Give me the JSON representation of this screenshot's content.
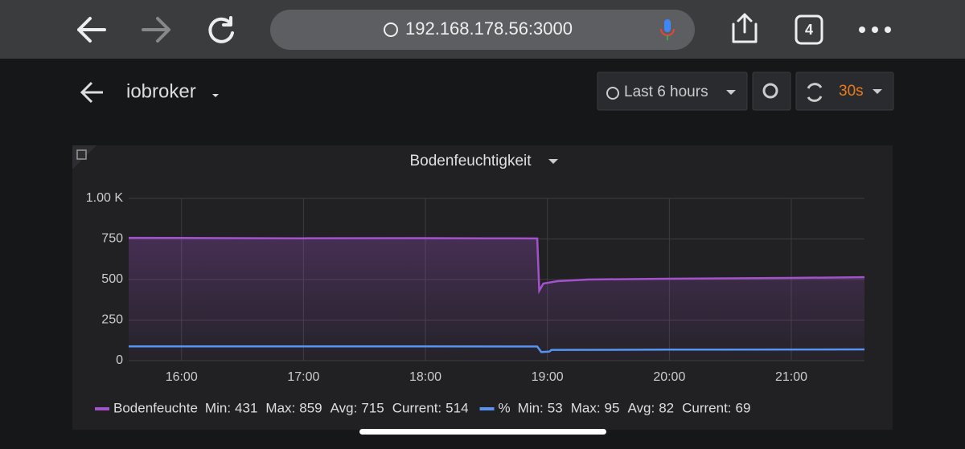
{
  "browser": {
    "url": "192.168.178.56:3000",
    "tab_count": "4"
  },
  "dashboard": {
    "title": "iobroker",
    "time_range": "Last 6 hours",
    "refresh": "30s"
  },
  "chart_data": {
    "type": "line",
    "title": "Bodenfeuchtigkeit",
    "xlim": [
      934,
      1296
    ],
    "xticks": [
      {
        "value": 960,
        "label": "16:00"
      },
      {
        "value": 1020,
        "label": "17:00"
      },
      {
        "value": 1080,
        "label": "18:00"
      },
      {
        "value": 1140,
        "label": "19:00"
      },
      {
        "value": 1200,
        "label": "20:00"
      },
      {
        "value": 1260,
        "label": "21:00"
      }
    ],
    "ylim": [
      0,
      1000
    ],
    "yticks": [
      0,
      250,
      500,
      750,
      {
        "value": 1000,
        "label": "1.00 K"
      }
    ],
    "grid": true,
    "series": [
      {
        "name": "Bodenfeuchte",
        "color": "#a352cc",
        "x": [
          934,
          960,
          1020,
          1080,
          1110,
          1135,
          1136,
          1138,
          1145,
          1160,
          1200,
          1260,
          1296
        ],
        "values": [
          757,
          756,
          754,
          755,
          754,
          753,
          431,
          475,
          490,
          500,
          505,
          510,
          514
        ],
        "stats": [
          {
            "label": "Min:",
            "value": 431
          },
          {
            "label": "Max:",
            "value": 859
          },
          {
            "label": "Avg:",
            "value": 715
          },
          {
            "label": "Current:",
            "value": 514
          }
        ]
      },
      {
        "name": "%",
        "color": "#5794f2",
        "x": [
          934,
          1020,
          1080,
          1135,
          1137,
          1141,
          1142,
          1200,
          1296
        ],
        "values": [
          88,
          88,
          88,
          87,
          53,
          56,
          66,
          68,
          69
        ],
        "stats": [
          {
            "label": "Min:",
            "value": 53
          },
          {
            "label": "Max:",
            "value": 95
          },
          {
            "label": "Avg:",
            "value": 82
          },
          {
            "label": "Current:",
            "value": 69
          }
        ]
      }
    ]
  }
}
